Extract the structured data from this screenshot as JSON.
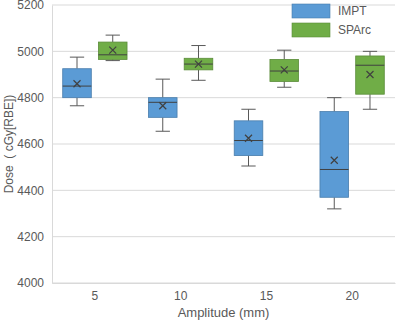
{
  "chart_data": {
    "type": "box",
    "x_label": "Amplitude (mm)",
    "y_label": "Dose  ( cGy[RBE])",
    "categories": [
      5,
      10,
      15,
      20
    ],
    "ylim": [
      4000,
      5200
    ],
    "yticks": [
      4000,
      4200,
      4400,
      4600,
      4800,
      5000,
      5200
    ],
    "grid": true,
    "legend": "top-right",
    "series": [
      {
        "name": "IMPT",
        "color": "#5b9bd5",
        "marker": "x",
        "min": [
          4765,
          4655,
          4505,
          4320
        ],
        "q1": [
          4800,
          4715,
          4550,
          4370
        ],
        "median": [
          4850,
          4780,
          4615,
          4490
        ],
        "q3": [
          4925,
          4800,
          4700,
          4740
        ],
        "max": [
          4975,
          4880,
          4750,
          4800
        ],
        "mean": [
          4860,
          4765,
          4625,
          4530
        ]
      },
      {
        "name": "SPArc",
        "color": "#70ad47",
        "marker": "x",
        "min": [
          4960,
          4875,
          4845,
          4750
        ],
        "q1": [
          4965,
          4920,
          4870,
          4815
        ],
        "median": [
          4985,
          4945,
          4915,
          4940
        ],
        "q3": [
          5040,
          4970,
          4965,
          4980
        ],
        "max": [
          5070,
          5025,
          5005,
          5000
        ],
        "mean": [
          5005,
          4945,
          4920,
          4900
        ]
      }
    ]
  }
}
